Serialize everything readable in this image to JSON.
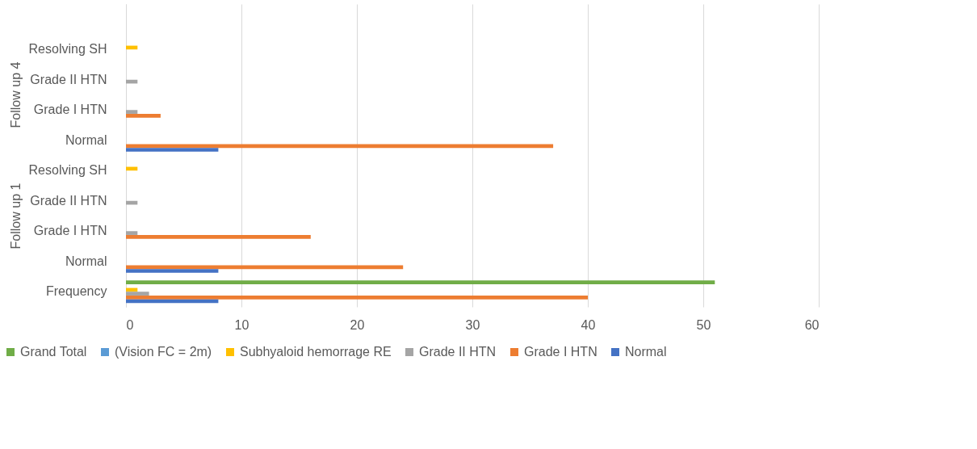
{
  "chart_data": {
    "type": "bar",
    "orientation": "horizontal",
    "categories": [
      null,
      "Resolving SH",
      "Grade II HTN",
      "Grade I HTN",
      "Normal",
      "Resolving SH",
      "Grade II HTN",
      "Grade I HTN",
      "Normal",
      "Frequency"
    ],
    "series": [
      {
        "name": "Grand Total",
        "color": "#70ad47",
        "values": [
          null,
          null,
          null,
          null,
          null,
          null,
          null,
          null,
          null,
          51
        ]
      },
      {
        "name": "(Vision FC = 2m)",
        "color": "#5b9bd5",
        "values": [
          null,
          null,
          null,
          null,
          null,
          null,
          null,
          null,
          null,
          null
        ]
      },
      {
        "name": "Subhyaloid hemorrage RE",
        "color": "#ffc000",
        "values": [
          null,
          1,
          null,
          null,
          null,
          1,
          null,
          null,
          null,
          1
        ]
      },
      {
        "name": "Grade II HTN",
        "color": "#a5a5a5",
        "values": [
          null,
          null,
          1,
          1,
          null,
          null,
          1,
          1,
          null,
          2
        ]
      },
      {
        "name": "Grade I HTN",
        "color": "#ed7d31",
        "values": [
          null,
          null,
          null,
          3,
          37,
          null,
          null,
          16,
          24,
          40
        ]
      },
      {
        "name": "Normal",
        "color": "#4472c4",
        "values": [
          null,
          null,
          null,
          null,
          8,
          null,
          null,
          null,
          8,
          8
        ]
      }
    ],
    "xlim": [
      0,
      60
    ],
    "xticks": [
      0,
      10,
      20,
      30,
      40,
      50,
      60
    ],
    "grid": "x",
    "legend": "bottom",
    "annotations": [
      "Follow up 4",
      "Follow up 1"
    ]
  }
}
